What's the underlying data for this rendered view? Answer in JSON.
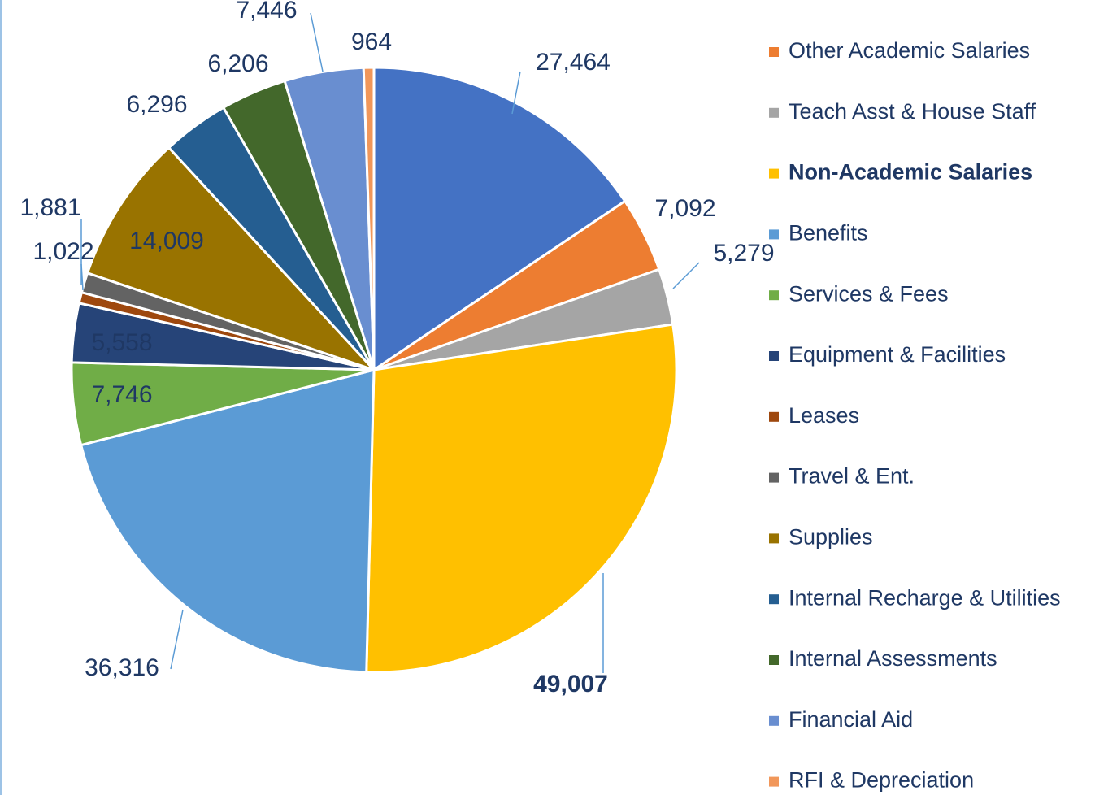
{
  "chart_data": {
    "type": "pie",
    "categories": [
      null,
      "Other Academic Salaries",
      "Teach Asst & House Staff",
      "Non-Academic Salaries",
      "Benefits",
      "Services & Fees",
      "Equipment & Facilities",
      "Leases",
      "Travel & Ent.",
      "Supplies",
      "Internal Recharge & Utilities",
      "Internal Assessments",
      "Financial Aid",
      "RFI & Depreciation"
    ],
    "values": [
      27464,
      7092,
      5279,
      49007,
      36316,
      7746,
      5558,
      1022,
      1881,
      14009,
      6296,
      6206,
      7446,
      964
    ],
    "value_labels": [
      "27,464",
      "7,092",
      "5,279",
      "49,007",
      "36,316",
      "7,746",
      "5,558",
      "1,022",
      "1,881",
      "14,009",
      "6,296",
      "6,206",
      "7,446",
      "964"
    ],
    "colors": [
      "#4472c4",
      "#ed7d31",
      "#a5a5a5",
      "#ffc000",
      "#5b9bd5",
      "#70ad47",
      "#264478",
      "#9e480e",
      "#636363",
      "#997300",
      "#255e91",
      "#43682b",
      "#698ed0",
      "#f1975a"
    ],
    "bold": [
      "Non-Academic Salaries"
    ]
  }
}
